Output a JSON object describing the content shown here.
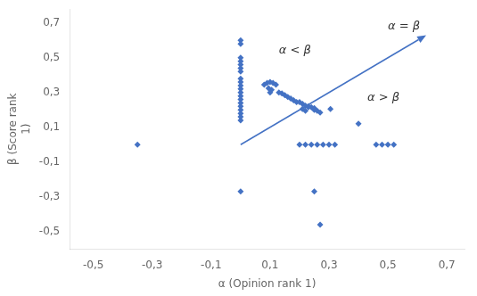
{
  "chart_data": {
    "type": "scatter",
    "xlabel": "α (Opinion rank 1)",
    "ylabel": "β (Score rank\n1)",
    "xlim": [
      -0.58,
      0.76
    ],
    "ylim": [
      -0.6,
      0.78
    ],
    "xticks": [
      {
        "value": -0.5,
        "label": "-0,5"
      },
      {
        "value": -0.3,
        "label": "-0,3"
      },
      {
        "value": -0.1,
        "label": "-0,1"
      },
      {
        "value": 0.1,
        "label": "0,1"
      },
      {
        "value": 0.3,
        "label": "0,3"
      },
      {
        "value": 0.5,
        "label": "0,5"
      },
      {
        "value": 0.7,
        "label": "0,7"
      }
    ],
    "yticks": [
      {
        "value": -0.5,
        "label": "-0,5"
      },
      {
        "value": -0.3,
        "label": "-0,3"
      },
      {
        "value": -0.1,
        "label": "-0,1"
      },
      {
        "value": 0.1,
        "label": "0,1"
      },
      {
        "value": 0.3,
        "label": "0,3"
      },
      {
        "value": 0.5,
        "label": "0,5"
      },
      {
        "value": 0.7,
        "label": "0,7"
      }
    ],
    "grid": false,
    "color": "#4472C4",
    "marker": "diamond",
    "x": [
      -0.35,
      0.0,
      0.0,
      0.0,
      0.0,
      0.0,
      0.0,
      0.0,
      0.0,
      0.0,
      0.0,
      0.0,
      0.0,
      0.0,
      0.0,
      0.0,
      0.0,
      0.0,
      0.0,
      0.0,
      0.0,
      0.0,
      0.08,
      0.09,
      0.1,
      0.11,
      0.12,
      0.095,
      0.105,
      0.1,
      0.13,
      0.14,
      0.15,
      0.16,
      0.17,
      0.18,
      0.19,
      0.2,
      0.21,
      0.22,
      0.23,
      0.21,
      0.22,
      0.23,
      0.24,
      0.25,
      0.25,
      0.26,
      0.27,
      0.305,
      0.2,
      0.22,
      0.24,
      0.26,
      0.28,
      0.3,
      0.32,
      0.4,
      0.46,
      0.48,
      0.5,
      0.52,
      0.25,
      0.27
    ],
    "values": [
      0.0,
      0.6,
      0.58,
      0.5,
      0.48,
      0.46,
      0.44,
      0.42,
      0.38,
      0.36,
      0.34,
      0.32,
      0.3,
      0.28,
      0.26,
      0.24,
      0.22,
      0.2,
      0.18,
      0.16,
      0.14,
      -0.27,
      0.345,
      0.355,
      0.36,
      0.355,
      0.345,
      0.325,
      0.315,
      0.3,
      0.3,
      0.295,
      0.285,
      0.275,
      0.265,
      0.255,
      0.245,
      0.245,
      0.235,
      0.225,
      0.215,
      0.205,
      0.195,
      0.22,
      0.215,
      0.21,
      0.2,
      0.195,
      0.185,
      0.205,
      0.0,
      0.0,
      0.0,
      0.0,
      0.0,
      0.0,
      0.0,
      0.12,
      0.0,
      0.0,
      0.0,
      0.0,
      -0.27,
      -0.46
    ],
    "annotations": [
      {
        "type": "arrow",
        "from": [
          0.0,
          0.0
        ],
        "to": [
          0.63,
          0.63
        ],
        "color": "#4472C4"
      },
      {
        "text": "α = β",
        "x": 0.5,
        "y": 0.68
      },
      {
        "text": "α < β",
        "x": 0.13,
        "y": 0.54
      },
      {
        "text": "α > β",
        "x": 0.43,
        "y": 0.27
      }
    ]
  }
}
